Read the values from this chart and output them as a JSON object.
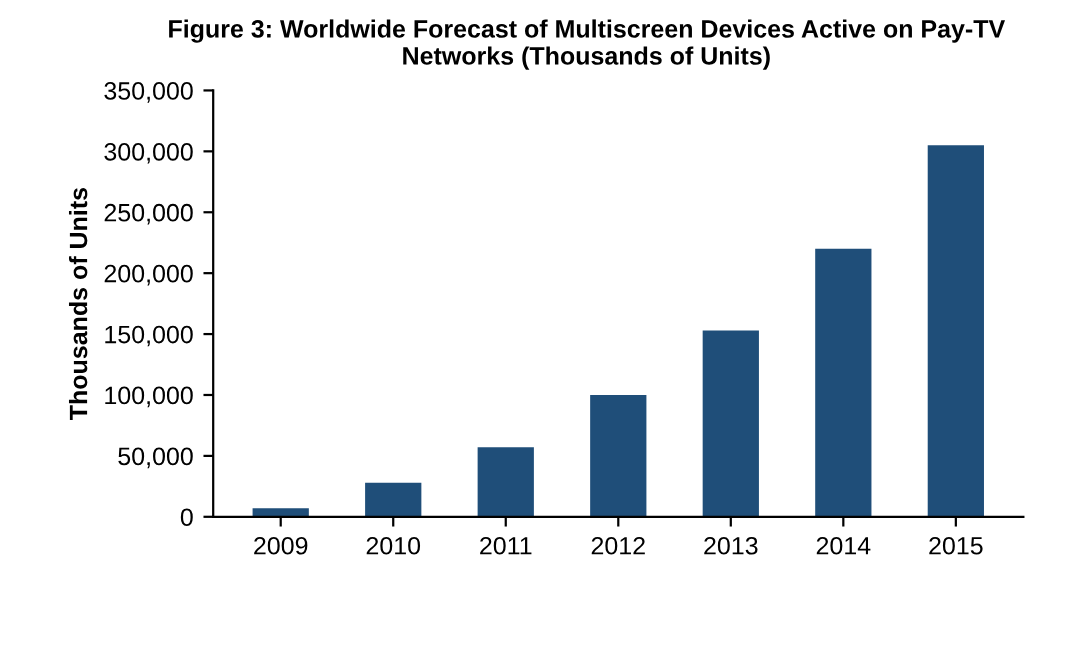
{
  "chart_data": {
    "type": "bar",
    "title": "Figure 3: Worldwide Forecast of Multiscreen Devices Active on Pay-TV\nNetworks (Thousands of Units)",
    "ylabel": "Thousands of Units",
    "categories": [
      "2009",
      "2010",
      "2011",
      "2012",
      "2013",
      "2014",
      "2015"
    ],
    "values": [
      7000,
      28000,
      57000,
      100000,
      153000,
      220000,
      305000
    ],
    "color": "#1f4e79",
    "ylim": [
      0,
      350000
    ],
    "yticks": [
      {
        "value": 0,
        "label": "0"
      },
      {
        "value": 50000,
        "label": "50,000"
      },
      {
        "value": 100000,
        "label": "100,000"
      },
      {
        "value": 150000,
        "label": "150,000"
      },
      {
        "value": 200000,
        "label": "200,000"
      },
      {
        "value": 250000,
        "label": "250,000"
      },
      {
        "value": 300000,
        "label": "300,000"
      },
      {
        "value": 350000,
        "label": "350,000"
      }
    ],
    "grid": false
  }
}
